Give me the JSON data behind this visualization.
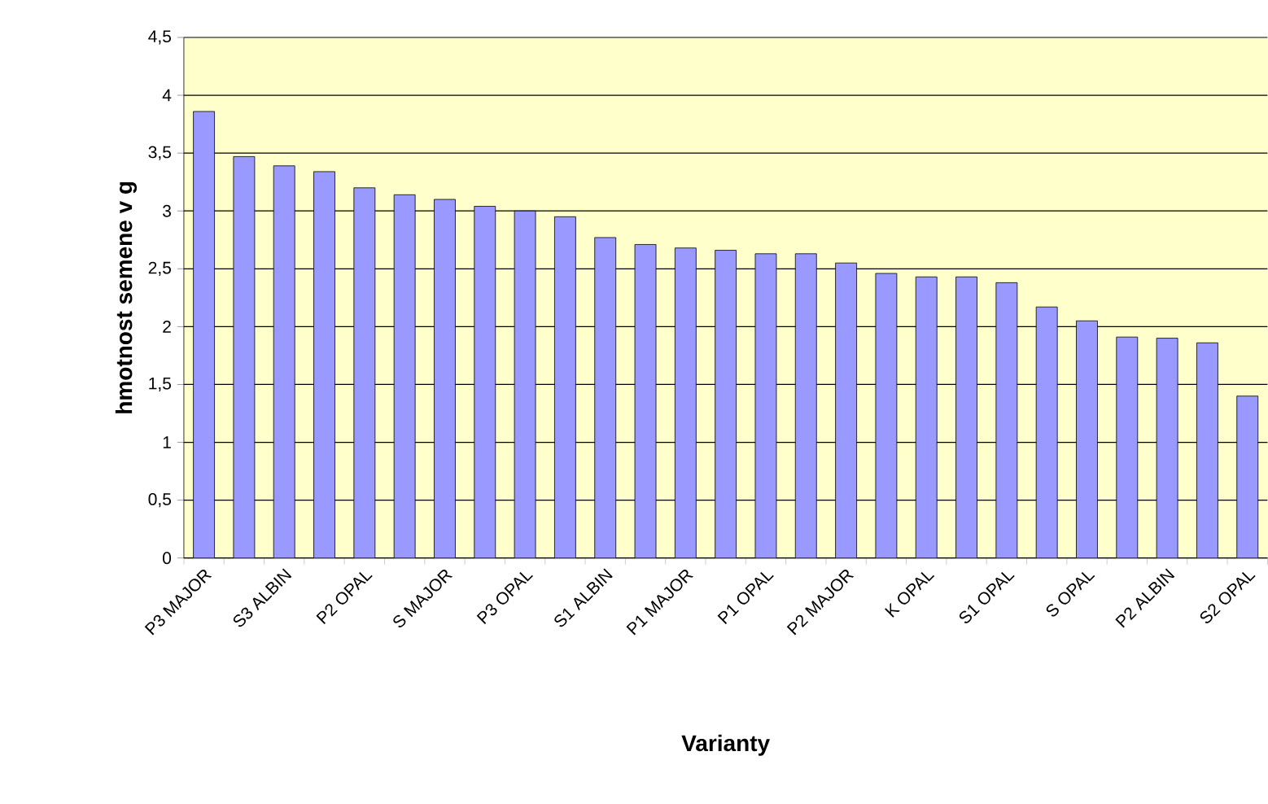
{
  "chart_data": {
    "type": "bar",
    "xlabel": "Varianty",
    "ylabel": "hmotnost semene v g",
    "categories": [
      "P3 MAJOR",
      null,
      "S3 ALBIN",
      null,
      "P2 OPAL",
      null,
      "S MAJOR",
      null,
      "P3 OPAL",
      null,
      "S1 ALBIN",
      null,
      "P1 MAJOR",
      null,
      "P1 OPAL",
      null,
      "P2 MAJOR",
      null,
      "K OPAL",
      null,
      "S1 OPAL",
      null,
      "S OPAL",
      null,
      "P2 ALBIN",
      null,
      "S2 OPAL"
    ],
    "values": [
      3.86,
      3.47,
      3.39,
      3.34,
      3.2,
      3.14,
      3.1,
      3.04,
      3.0,
      2.95,
      2.77,
      2.71,
      2.68,
      2.66,
      2.63,
      2.63,
      2.55,
      2.46,
      2.43,
      2.43,
      2.38,
      2.17,
      2.05,
      1.91,
      1.9,
      1.86,
      1.4
    ],
    "color": "#9999ff",
    "ylim": [
      0,
      4.5
    ],
    "yticks": [
      0,
      {
        "value": 0.5,
        "label": "0,5"
      },
      1,
      {
        "value": 1.5,
        "label": "1,5"
      },
      2,
      {
        "value": 2.5,
        "label": "2,5"
      },
      3,
      {
        "value": 3.5,
        "label": "3,5"
      },
      4,
      {
        "value": 4.5,
        "label": "4,5"
      }
    ],
    "grid": "y"
  }
}
